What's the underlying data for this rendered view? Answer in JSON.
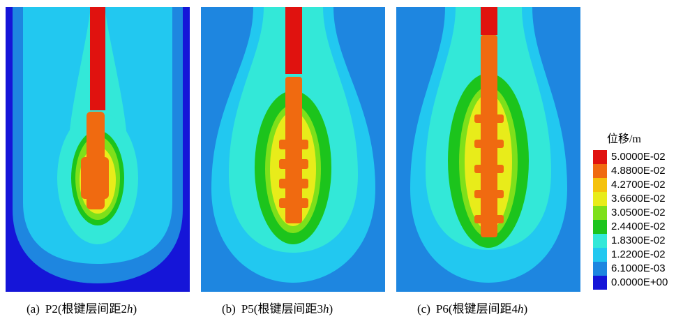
{
  "panels": [
    {
      "tag": "(a)",
      "text_pre": "P2(根键层间距2",
      "text_italic": "h",
      "text_post": ")"
    },
    {
      "tag": "(b)",
      "text_pre": "P5(根键层间距3",
      "text_italic": "h",
      "text_post": ")"
    },
    {
      "tag": "(c)",
      "text_pre": "P6(根键层间距4",
      "text_italic": "h",
      "text_post": ")"
    }
  ],
  "legend": {
    "title": "位移/m",
    "items": [
      {
        "label": "5.0000E-02",
        "color": "#e0120f"
      },
      {
        "label": "4.8800E-02",
        "color": "#f06a10"
      },
      {
        "label": "4.2700E-02",
        "color": "#f5c20c"
      },
      {
        "label": "3.6600E-02",
        "color": "#e8ec1a"
      },
      {
        "label": "3.0500E-02",
        "color": "#7ee01a"
      },
      {
        "label": "2.4400E-02",
        "color": "#1cc41c"
      },
      {
        "label": "1.8300E-02",
        "color": "#33e8d8"
      },
      {
        "label": "1.2200E-02",
        "color": "#22c8f0"
      },
      {
        "label": "6.1000E-03",
        "color": "#1e86e0"
      },
      {
        "label": "0.0000E+00",
        "color": "#1515d8"
      }
    ]
  }
}
